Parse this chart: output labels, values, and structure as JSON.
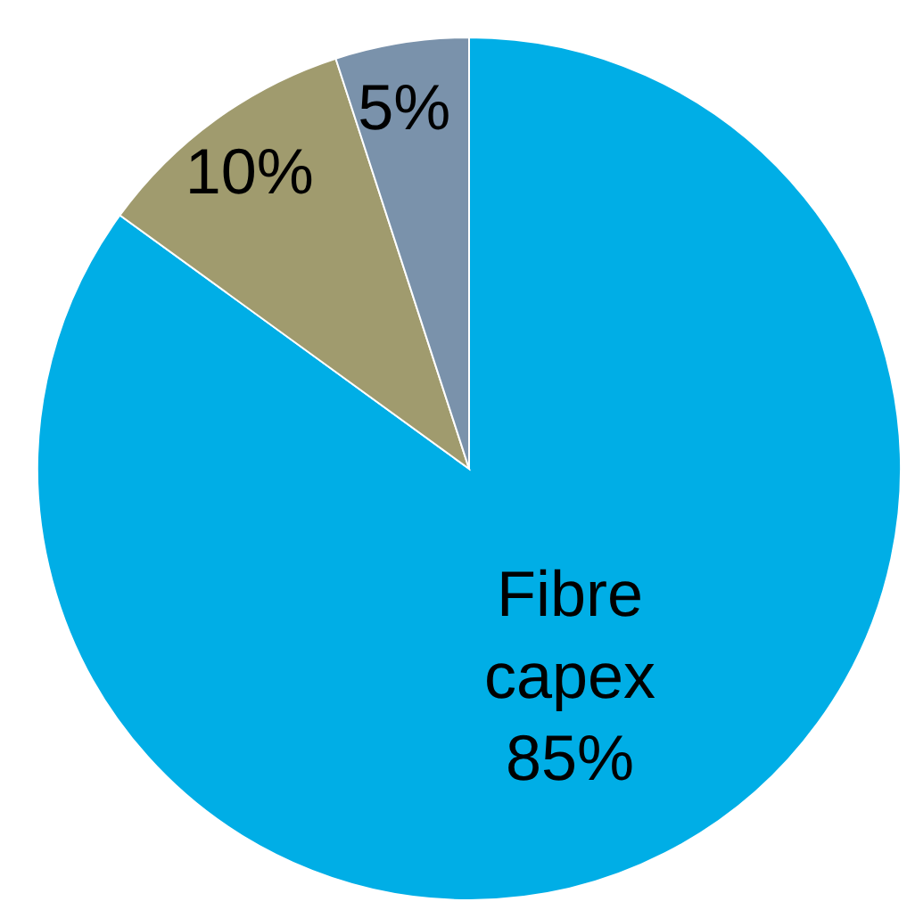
{
  "chart_data": {
    "type": "pie",
    "categories": [
      "Fibre capex",
      null,
      null
    ],
    "values": [
      85,
      10,
      5
    ],
    "value_labels": [
      "85%",
      "10%",
      "5%"
    ],
    "colors": [
      "#00aee6",
      "#a09b6e",
      "#7a92ab"
    ],
    "legend": false
  }
}
